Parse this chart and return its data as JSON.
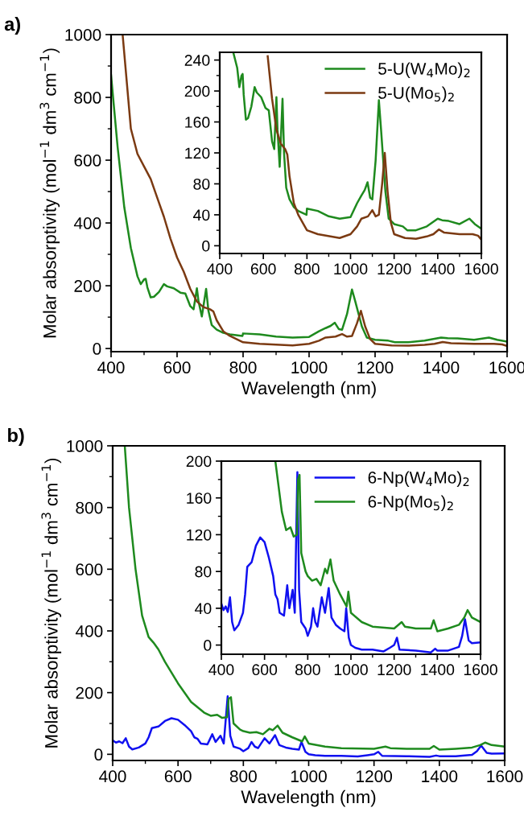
{
  "chart_data": [
    {
      "type": "line",
      "title": "a)",
      "xlabel": "Wavelength (nm)",
      "ylabel": "Molar absorptivity (mol$^{−1}$ dm$^{3}$ cm$^{−1}$)",
      "xlim": [
        400,
        1600
      ],
      "ylim": [
        -10,
        1000
      ],
      "xticks": [
        400,
        {
          "value": 500,
          "label": null
        },
        600,
        {
          "value": 700,
          "label": null
        },
        800,
        {
          "value": 900,
          "label": null
        },
        1000,
        {
          "value": 1100,
          "label": null
        },
        1200,
        {
          "value": 1300,
          "label": null
        },
        1400,
        {
          "value": 1500,
          "label": null
        },
        1600
      ],
      "yticks": [
        0,
        {
          "value": 100,
          "label": null
        },
        200,
        {
          "value": 300,
          "label": null
        },
        400,
        {
          "value": 500,
          "label": null
        },
        600,
        {
          "value": 700,
          "label": null
        },
        800,
        {
          "value": 900,
          "label": null
        },
        1000
      ],
      "grid": false,
      "legend": false,
      "series": [
        {
          "color": "#1e8a1e",
          "x": [
            400,
            420,
            440,
            460,
            480,
            490,
            500,
            505,
            510,
            520,
            530,
            545,
            560,
            570,
            590,
            610,
            625,
            640,
            650,
            660,
            665,
            675,
            688,
            695,
            705,
            720,
            740,
            760,
            798,
            800,
            850,
            900,
            950,
            1000,
            1030,
            1050,
            1065,
            1078,
            1090,
            1100,
            1115,
            1130,
            1140,
            1160,
            1175,
            1200,
            1240,
            1260,
            1300,
            1350,
            1400,
            1420,
            1450,
            1500,
            1545,
            1570,
            1600
          ],
          "values": [
            870,
            640,
            450,
            320,
            230,
            205,
            220,
            222,
            195,
            163,
            165,
            180,
            205,
            198,
            192,
            178,
            175,
            135,
            125,
            192,
            150,
            102,
            190,
            120,
            75,
            60,
            50,
            45,
            40,
            48,
            45,
            38,
            35,
            37,
            55,
            65,
            72,
            82,
            62,
            60,
            110,
            188,
            150,
            70,
            35,
            28,
            25,
            20,
            20,
            25,
            35,
            33,
            32,
            28,
            35,
            28,
            22
          ]
        },
        {
          "color": "#7b3a12",
          "x": [
            435,
            460,
            480,
            500,
            520,
            540,
            560,
            580,
            600,
            620,
            640,
            660,
            680,
            700,
            710,
            720,
            740,
            760,
            800,
            850,
            950,
            1000,
            1030,
            1050,
            1080,
            1100,
            1115,
            1130,
            1145,
            1157,
            1170,
            1185,
            1200,
            1250,
            1300,
            1350,
            1380,
            1405,
            1430,
            1500,
            1560,
            1585,
            1600
          ],
          "values": [
            1000,
            700,
            620,
            580,
            540,
            480,
            420,
            350,
            290,
            245,
            190,
            150,
            132,
            125,
            118,
            90,
            55,
            40,
            20,
            15,
            10,
            15,
            25,
            35,
            38,
            46,
            38,
            40,
            80,
            120,
            70,
            30,
            15,
            10,
            9,
            12,
            15,
            21,
            17,
            15,
            15,
            13,
            8
          ]
        }
      ]
    },
    {
      "type": "line",
      "xlim": [
        400,
        1600
      ],
      "ylim": [
        -10,
        250
      ],
      "xticks": [
        400,
        {
          "value": 500,
          "label": null
        },
        600,
        {
          "value": 700,
          "label": null
        },
        800,
        {
          "value": 900,
          "label": null
        },
        1000,
        {
          "value": 1100,
          "label": null
        },
        1200,
        {
          "value": 1300,
          "label": null
        },
        1400,
        {
          "value": 1500,
          "label": null
        },
        1600
      ],
      "yticks": [
        0,
        {
          "value": 20,
          "label": null
        },
        40,
        {
          "value": 60,
          "label": null
        },
        80,
        {
          "value": 100,
          "label": null
        },
        120,
        {
          "value": 140,
          "label": null
        },
        160,
        {
          "value": 180,
          "label": null
        },
        200,
        {
          "value": 220,
          "label": null
        },
        240
      ],
      "grid": false,
      "legend": "top right",
      "series": [
        {
          "name": "5-U(W$_{4}$Mo)$_{2}$",
          "color": "#1e8a1e",
          "x": [
            462,
            480,
            490,
            500,
            505,
            510,
            520,
            530,
            545,
            560,
            570,
            590,
            610,
            625,
            640,
            650,
            660,
            665,
            675,
            688,
            695,
            705,
            720,
            740,
            760,
            798,
            800,
            850,
            900,
            950,
            1000,
            1030,
            1050,
            1065,
            1078,
            1090,
            1100,
            1115,
            1130,
            1140,
            1160,
            1175,
            1200,
            1240,
            1260,
            1300,
            1350,
            1400,
            1420,
            1450,
            1500,
            1545,
            1570,
            1600
          ],
          "values": [
            250,
            230,
            205,
            220,
            222,
            195,
            163,
            165,
            180,
            205,
            198,
            192,
            178,
            175,
            135,
            125,
            192,
            150,
            102,
            190,
            120,
            75,
            60,
            50,
            45,
            40,
            48,
            45,
            38,
            35,
            37,
            55,
            65,
            72,
            82,
            62,
            60,
            110,
            188,
            150,
            70,
            35,
            28,
            25,
            20,
            20,
            25,
            35,
            33,
            32,
            28,
            35,
            28,
            22
          ]
        },
        {
          "name": "5-U(Mo$_{5}$)$_{2}$",
          "color": "#7b3a12",
          "x": [
            620,
            640,
            660,
            680,
            700,
            710,
            720,
            740,
            760,
            800,
            850,
            950,
            1000,
            1030,
            1050,
            1080,
            1100,
            1115,
            1130,
            1145,
            1157,
            1170,
            1185,
            1200,
            1250,
            1300,
            1350,
            1380,
            1405,
            1430,
            1500,
            1560,
            1585,
            1600
          ],
          "values": [
            245,
            190,
            150,
            132,
            125,
            118,
            90,
            55,
            40,
            20,
            15,
            10,
            15,
            25,
            35,
            38,
            46,
            38,
            40,
            80,
            120,
            70,
            30,
            15,
            10,
            9,
            12,
            15,
            21,
            17,
            15,
            15,
            13,
            8
          ]
        }
      ]
    },
    {
      "type": "line",
      "title": "b)",
      "xlabel": "Wavelength (nm)",
      "ylabel": "Molar absorptivity (mol$^{−1}$ dm$^{3}$ cm$^{−1}$)",
      "xlim": [
        400,
        1600
      ],
      "ylim": [
        -20,
        1000
      ],
      "xticks": [
        400,
        {
          "value": 500,
          "label": null
        },
        600,
        {
          "value": 700,
          "label": null
        },
        800,
        {
          "value": 900,
          "label": null
        },
        1000,
        {
          "value": 1100,
          "label": null
        },
        1200,
        {
          "value": 1300,
          "label": null
        },
        1400,
        {
          "value": 1500,
          "label": null
        },
        1600
      ],
      "yticks": [
        0,
        {
          "value": 100,
          "label": null
        },
        200,
        {
          "value": 300,
          "label": null
        },
        400,
        {
          "value": 500,
          "label": null
        },
        600,
        {
          "value": 700,
          "label": null
        },
        800,
        {
          "value": 900,
          "label": null
        },
        1000
      ],
      "grid": false,
      "legend": false,
      "series": [
        {
          "color": "#1010f0",
          "x": [
            400,
            410,
            420,
            430,
            440,
            450,
            460,
            480,
            500,
            510,
            520,
            540,
            560,
            580,
            600,
            620,
            640,
            650,
            660,
            670,
            690,
            705,
            715,
            730,
            740,
            752,
            760,
            770,
            790,
            800,
            815,
            825,
            835,
            845,
            865,
            880,
            897,
            910,
            930,
            950,
            970,
            978,
            990,
            1000,
            1020,
            1050,
            1100,
            1150,
            1180,
            1200,
            1213,
            1225,
            1300,
            1370,
            1390,
            1400,
            1450,
            1500,
            1515,
            1528,
            1545,
            1560,
            1600
          ],
          "values": [
            45,
            38,
            42,
            36,
            52,
            25,
            16,
            22,
            35,
            55,
            85,
            90,
            108,
            117,
            112,
            95,
            75,
            55,
            50,
            35,
            32,
            65,
            40,
            60,
            35,
            188,
            60,
            25,
            18,
            10,
            20,
            40,
            25,
            20,
            52,
            35,
            62,
            30,
            22,
            18,
            15,
            40,
            8,
            0,
            -3,
            -5,
            -5,
            -7,
            -3,
            0,
            8,
            -5,
            -6,
            -8,
            -4,
            -6,
            -6,
            -2,
            10,
            28,
            5,
            2,
            3
          ]
        },
        {
          "color": "#1e8a1e",
          "x": [
            437,
            450,
            470,
            490,
            510,
            525,
            540,
            560,
            600,
            640,
            680,
            700,
            720,
            735,
            750,
            755,
            762,
            770,
            790,
            800,
            820,
            840,
            860,
            880,
            890,
            905,
            920,
            950,
            980,
            988,
            1000,
            1050,
            1100,
            1200,
            1235,
            1250,
            1300,
            1370,
            1383,
            1400,
            1450,
            1500,
            1525,
            1540,
            1560,
            1600
          ],
          "values": [
            1000,
            800,
            600,
            450,
            380,
            362,
            340,
            300,
            230,
            170,
            135,
            125,
            128,
            118,
            120,
            180,
            185,
            100,
            80,
            75,
            70,
            72,
            65,
            83,
            78,
            93,
            70,
            55,
            42,
            58,
            35,
            25,
            20,
            18,
            25,
            20,
            18,
            18,
            27,
            15,
            18,
            22,
            30,
            38,
            30,
            25
          ]
        }
      ]
    },
    {
      "type": "line",
      "xlim": [
        400,
        1600
      ],
      "ylim": [
        -10,
        200
      ],
      "xticks": [
        400,
        {
          "value": 500,
          "label": null
        },
        600,
        {
          "value": 700,
          "label": null
        },
        800,
        {
          "value": 900,
          "label": null
        },
        1000,
        {
          "value": 1100,
          "label": null
        },
        1200,
        {
          "value": 1300,
          "label": null
        },
        1400,
        {
          "value": 1500,
          "label": null
        },
        1600
      ],
      "yticks": [
        0,
        {
          "value": 20,
          "label": null
        },
        40,
        {
          "value": 60,
          "label": null
        },
        80,
        {
          "value": 100,
          "label": null
        },
        120,
        {
          "value": 140,
          "label": null
        },
        160,
        {
          "value": 180,
          "label": null
        },
        200
      ],
      "grid": false,
      "legend": "top right",
      "series": [
        {
          "name": "6-Np(W$_{4}$Mo)$_{2}$",
          "color": "#1010f0",
          "x": [
            400,
            410,
            420,
            430,
            440,
            450,
            460,
            480,
            500,
            510,
            520,
            540,
            560,
            580,
            600,
            620,
            640,
            650,
            660,
            670,
            690,
            705,
            715,
            730,
            740,
            752,
            760,
            770,
            790,
            800,
            815,
            825,
            835,
            845,
            865,
            880,
            897,
            910,
            930,
            950,
            970,
            978,
            990,
            1000,
            1020,
            1050,
            1100,
            1150,
            1180,
            1200,
            1213,
            1225,
            1300,
            1370,
            1390,
            1400,
            1450,
            1500,
            1515,
            1528,
            1545,
            1560,
            1600
          ],
          "values": [
            45,
            38,
            42,
            36,
            52,
            25,
            16,
            22,
            35,
            55,
            85,
            90,
            108,
            117,
            112,
            95,
            75,
            55,
            50,
            35,
            32,
            65,
            40,
            60,
            35,
            188,
            60,
            25,
            18,
            10,
            20,
            40,
            25,
            20,
            52,
            35,
            62,
            30,
            22,
            18,
            15,
            40,
            8,
            0,
            -3,
            -5,
            -5,
            -7,
            -3,
            0,
            8,
            -5,
            -6,
            -8,
            -4,
            -6,
            -6,
            -2,
            10,
            28,
            5,
            2,
            3
          ]
        },
        {
          "name": "6-Np(Mo$_{5}$)$_{2}$",
          "color": "#1e8a1e",
          "x": [
            650,
            680,
            700,
            720,
            735,
            750,
            755,
            762,
            770,
            790,
            800,
            820,
            840,
            860,
            880,
            890,
            905,
            920,
            950,
            980,
            988,
            1000,
            1050,
            1100,
            1200,
            1235,
            1250,
            1300,
            1370,
            1383,
            1400,
            1450,
            1500,
            1525,
            1540,
            1560,
            1600
          ],
          "values": [
            200,
            145,
            125,
            128,
            118,
            120,
            180,
            185,
            100,
            80,
            75,
            70,
            72,
            65,
            83,
            78,
            93,
            70,
            55,
            42,
            58,
            35,
            25,
            20,
            18,
            25,
            20,
            18,
            18,
            27,
            15,
            18,
            22,
            30,
            38,
            30,
            25
          ]
        }
      ]
    }
  ]
}
